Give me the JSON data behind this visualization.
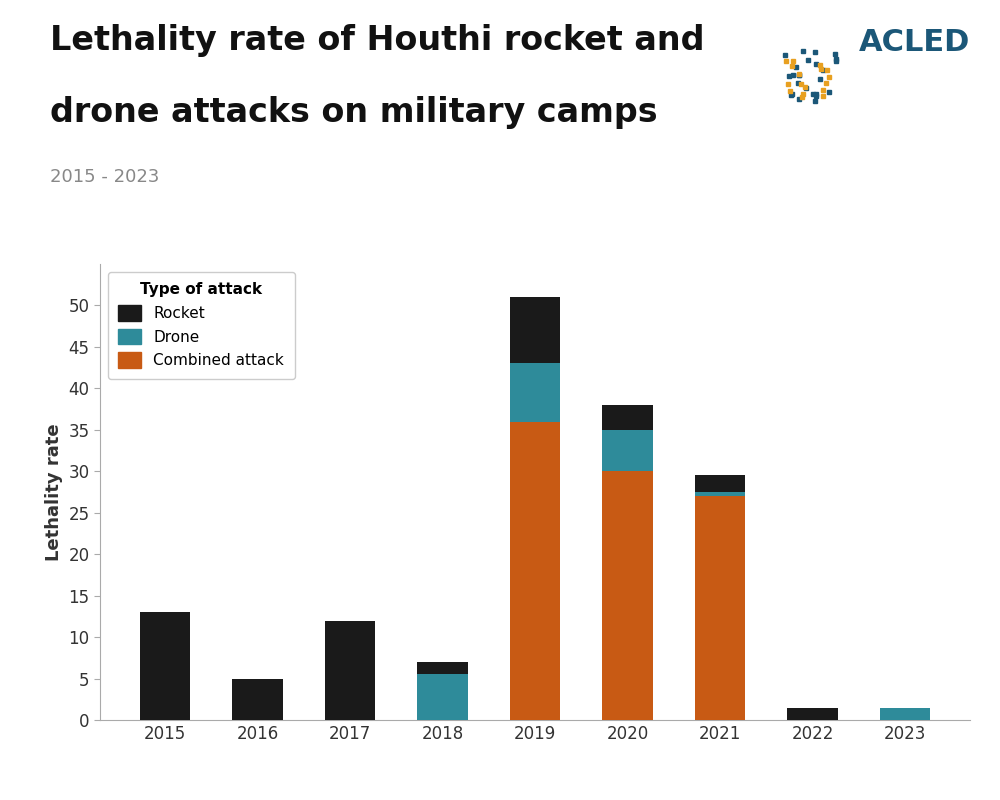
{
  "years": [
    "2015",
    "2016",
    "2017",
    "2018",
    "2019",
    "2020",
    "2021",
    "2022",
    "2023"
  ],
  "rocket": [
    13.0,
    5.0,
    12.0,
    1.5,
    8.0,
    3.0,
    2.0,
    1.5,
    0.0
  ],
  "drone": [
    0.0,
    0.0,
    0.0,
    5.5,
    7.0,
    5.0,
    0.5,
    0.0,
    1.5
  ],
  "combined": [
    0.0,
    0.0,
    0.0,
    0.0,
    36.0,
    30.0,
    27.0,
    0.0,
    0.0
  ],
  "rocket_color": "#1a1a1a",
  "drone_color": "#2e8b9a",
  "combined_color": "#c85a14",
  "title_line1": "Lethality rate of Houthi rocket and",
  "title_line2": "drone attacks on military camps",
  "subtitle": "2015 - 2023",
  "ylabel": "Lethality rate",
  "legend_title": "Type of attack",
  "legend_labels": [
    "Rocket",
    "Drone",
    "Combined attack"
  ],
  "ylim": [
    0,
    55
  ],
  "yticks": [
    0,
    5,
    10,
    15,
    20,
    25,
    30,
    35,
    40,
    45,
    50
  ],
  "title_fontsize": 24,
  "subtitle_fontsize": 13,
  "ylabel_fontsize": 13,
  "tick_fontsize": 12,
  "acled_color": "#1b5778",
  "background_color": "#ffffff"
}
